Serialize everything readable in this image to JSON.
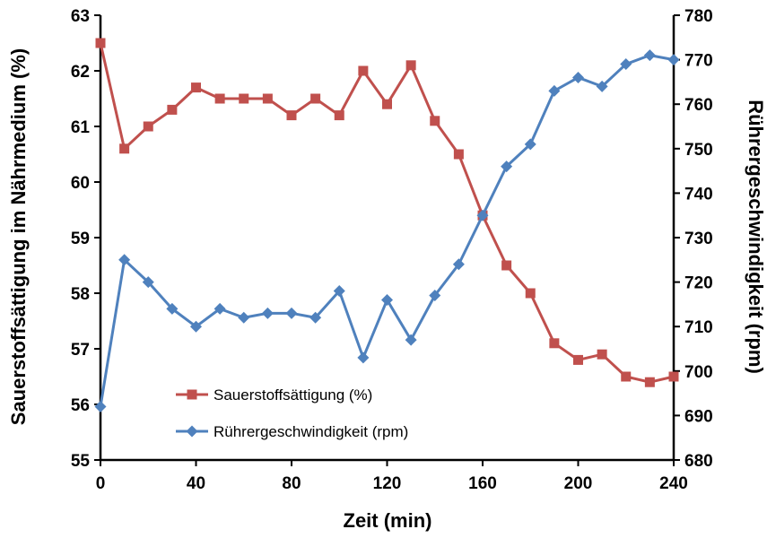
{
  "chart_data": {
    "type": "line",
    "xlabel": "Zeit (min)",
    "ylabel_left": "Sauerstoffsättigung im Nährmedium (%)",
    "ylabel_right": "Rührergeschwindigkeit (rpm)",
    "xlim": [
      0,
      240
    ],
    "ylim_left": [
      55,
      63
    ],
    "ylim_right": [
      680,
      780
    ],
    "x_ticks": [
      "0",
      "40",
      "80",
      "120",
      "160",
      "200",
      "240"
    ],
    "y_left_ticks": [
      "55",
      "56",
      "57",
      "58",
      "59",
      "60",
      "61",
      "62",
      "63"
    ],
    "y_right_ticks": [
      "680",
      "690",
      "700",
      "710",
      "720",
      "730",
      "740",
      "750",
      "760",
      "770",
      "780"
    ],
    "grid": false,
    "legend_position": "bottom-left",
    "x": [
      0,
      10,
      20,
      30,
      40,
      50,
      60,
      70,
      80,
      90,
      100,
      110,
      120,
      130,
      140,
      150,
      160,
      170,
      180,
      190,
      200,
      210,
      220,
      230,
      240
    ],
    "series": [
      {
        "name": "Sauerstoffsättigung (%)",
        "axis": "left",
        "marker": "square",
        "color": "#c0504d",
        "values": [
          62.5,
          60.6,
          61.0,
          61.3,
          61.7,
          61.5,
          61.5,
          61.5,
          61.2,
          61.5,
          61.2,
          62.0,
          61.4,
          62.1,
          61.1,
          60.5,
          59.4,
          58.5,
          58.0,
          57.1,
          56.8,
          56.9,
          56.5,
          56.4,
          56.5
        ]
      },
      {
        "name": "Rührergeschwindigkeit (rpm)",
        "axis": "right",
        "marker": "diamond",
        "color": "#4f81bd",
        "values": [
          692,
          725,
          720,
          714,
          710,
          714,
          712,
          713,
          713,
          712,
          718,
          703,
          716,
          707,
          717,
          724,
          735,
          746,
          751,
          763,
          766,
          764,
          769,
          771,
          770
        ]
      }
    ]
  }
}
